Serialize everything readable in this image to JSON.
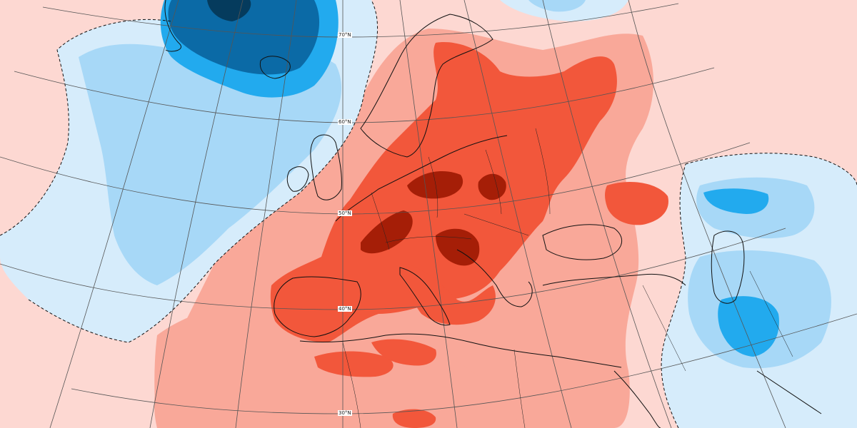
{
  "map": {
    "colors": {
      "warm_1": "#fdd8d2",
      "warm_2": "#f9a899",
      "warm_3": "#f2573b",
      "warm_4": "#a51e07",
      "cold_1": "#d6ecfb",
      "cold_2": "#a7d8f7",
      "cold_3": "#22aaee",
      "cold_4": "#0b6aa6",
      "cold_5": "#053b5d",
      "coast": "#111111",
      "graticule": "#555555"
    },
    "latitude_labels": [
      {
        "id": "lat-70",
        "text": "70°N"
      },
      {
        "id": "lat-60",
        "text": "60°N"
      },
      {
        "id": "lat-50",
        "text": "50°N"
      },
      {
        "id": "lat-40",
        "text": "40°N"
      },
      {
        "id": "lat-30",
        "text": "30°N"
      }
    ]
  }
}
